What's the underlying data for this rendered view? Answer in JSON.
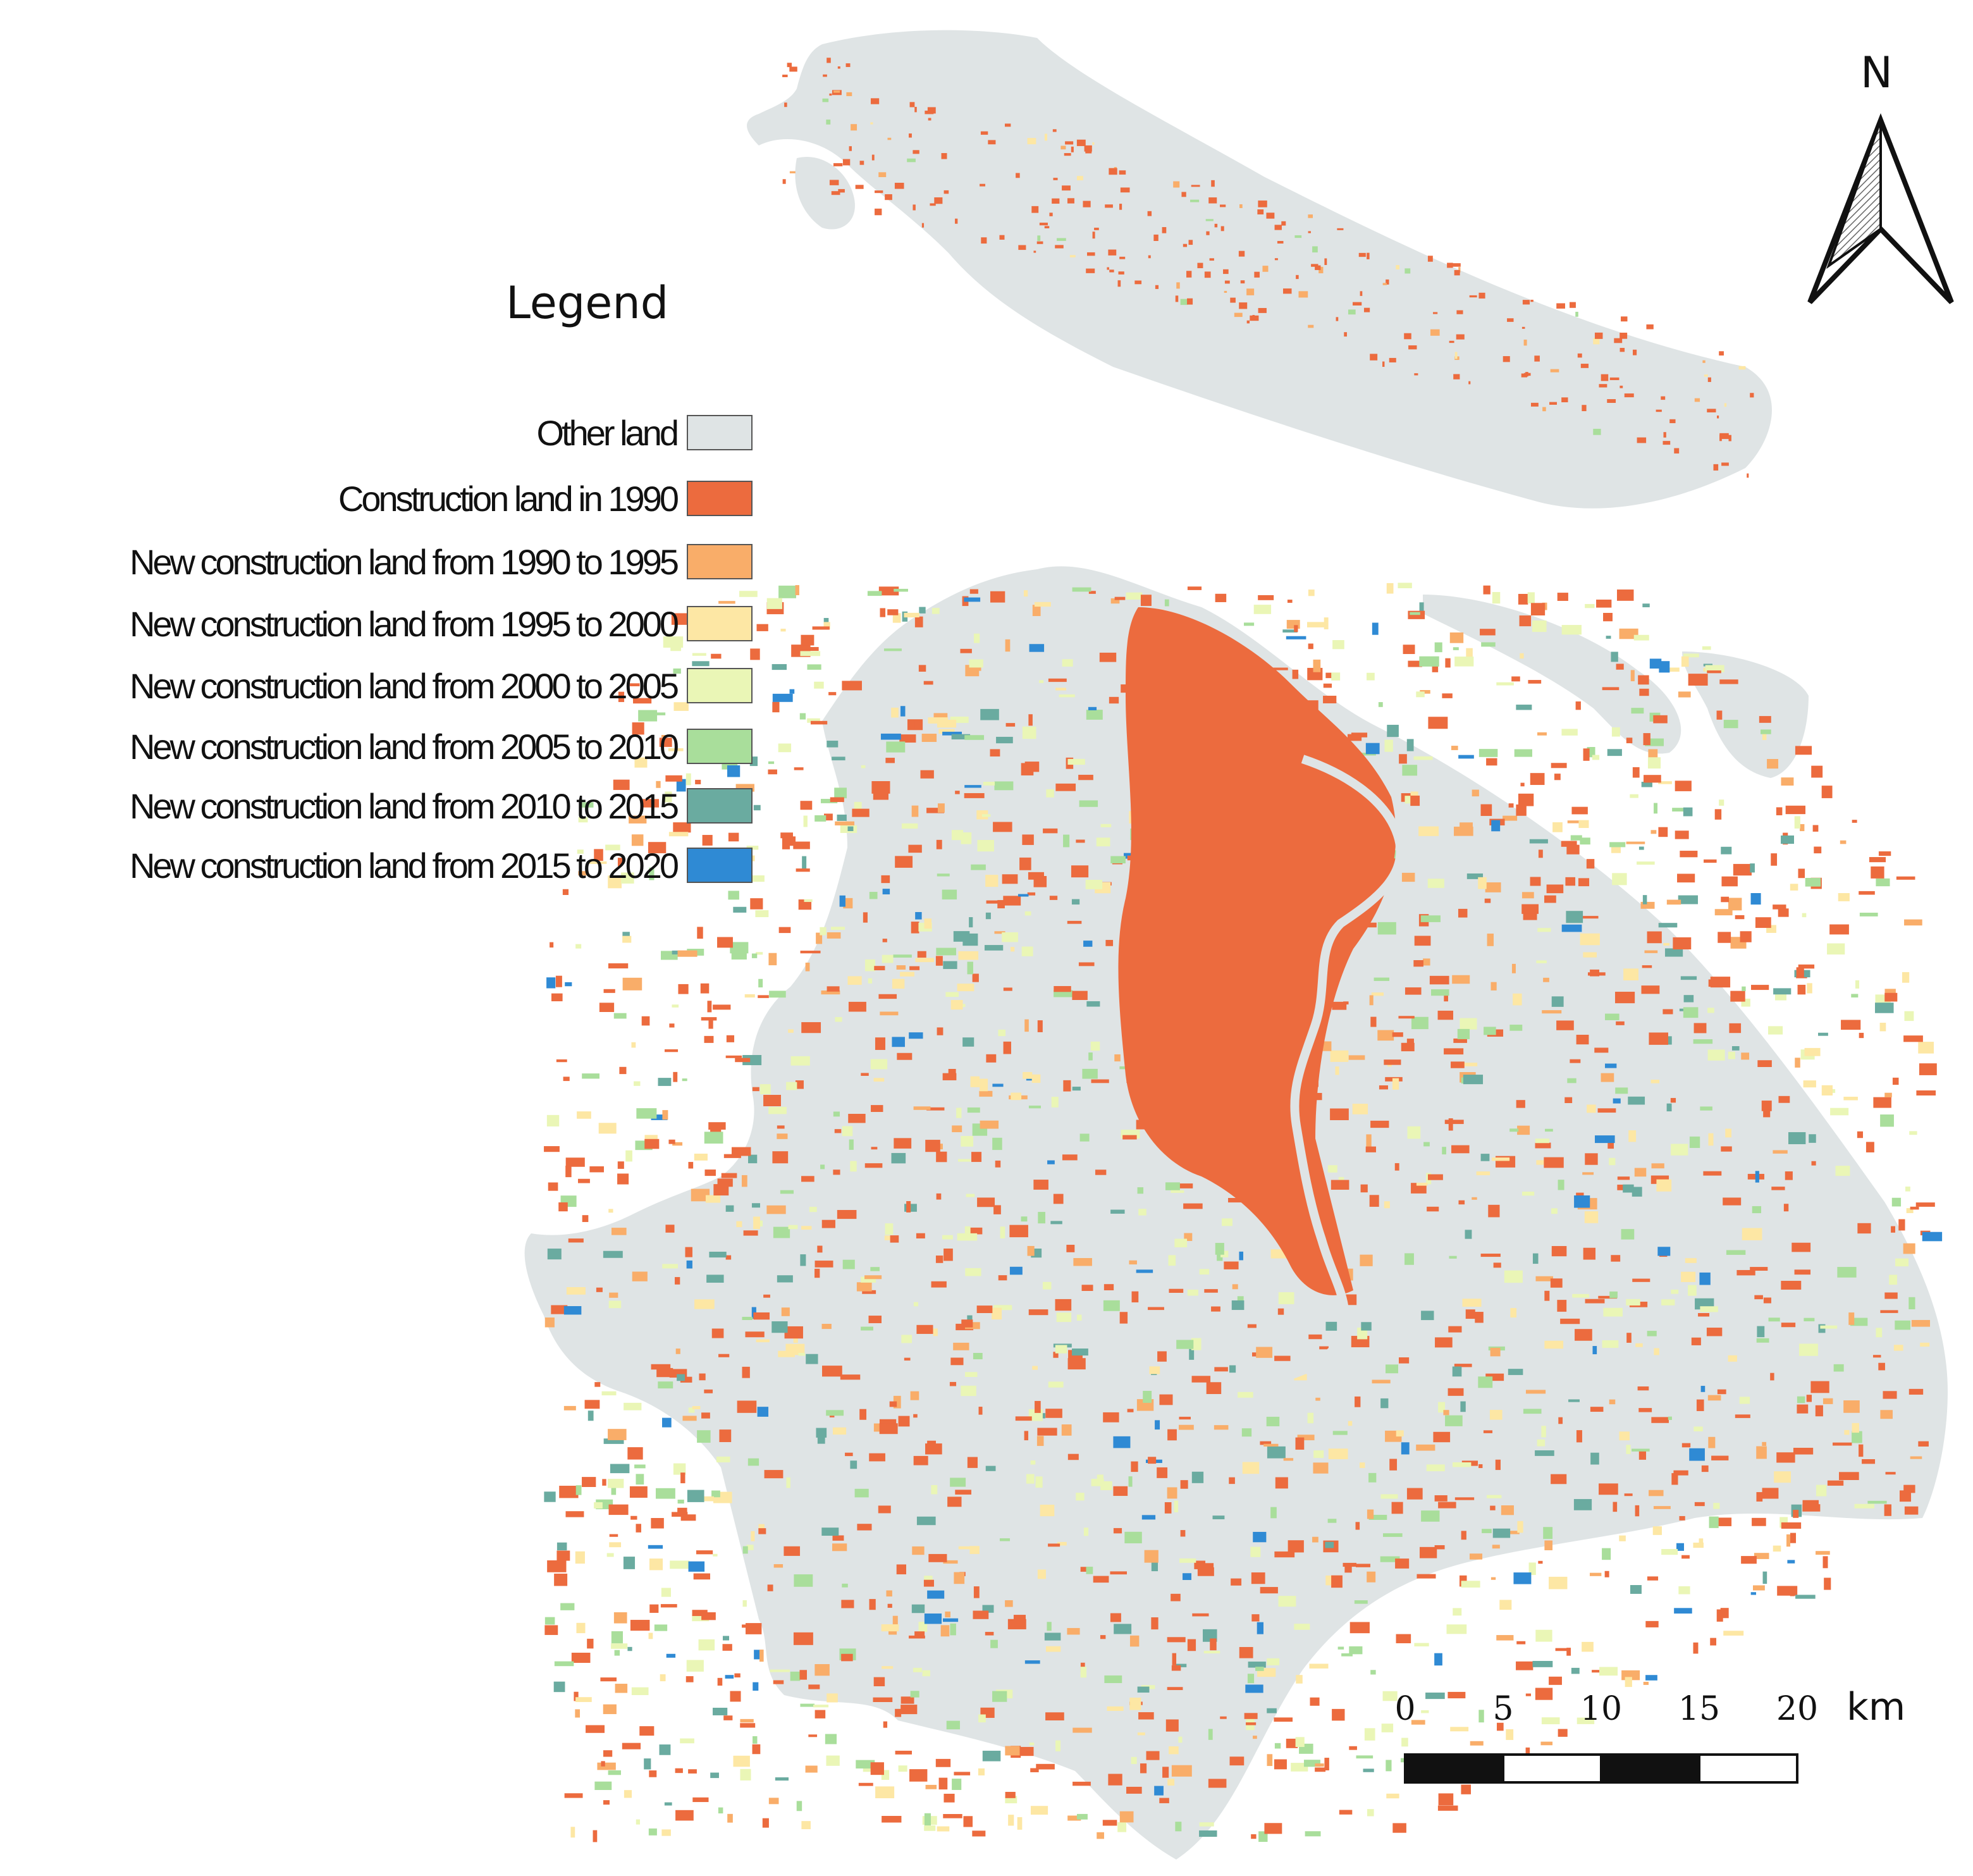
{
  "legend": {
    "title": "Legend",
    "items": [
      {
        "label": "Other land",
        "color": "#dfe4e5"
      },
      {
        "label": "Construction land in 1990",
        "color": "#ec6b3e"
      },
      {
        "label": "New construction land from 1990 to 1995",
        "color": "#f9ad69"
      },
      {
        "label": "New construction land from 1995 to 2000",
        "color": "#fde7a4"
      },
      {
        "label": "New construction land from 2000 to 2005",
        "color": "#eaf6b6"
      },
      {
        "label": "New construction land from 2005 to 2010",
        "color": "#a9de9b"
      },
      {
        "label": "New construction land from 2010 to 2015",
        "color": "#6aaba0"
      },
      {
        "label": "New construction land from 2015 to 2020",
        "color": "#2f8ad4"
      }
    ]
  },
  "north_arrow": {
    "label": "N"
  },
  "scale_bar": {
    "ticks": [
      "0",
      "5",
      "10",
      "15",
      "20"
    ],
    "unit": "km"
  },
  "colors": {
    "background": "#ffffff",
    "other_land": "#dfe4e5",
    "river": "#dfe4e5"
  }
}
